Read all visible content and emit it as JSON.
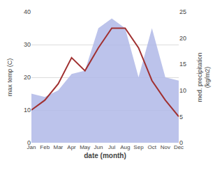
{
  "chart_data": {
    "type": "line",
    "categories": [
      "Jan",
      "Feb",
      "Mar",
      "Apr",
      "May",
      "Jun",
      "Jul",
      "Aug",
      "Sep",
      "Oct",
      "Nov",
      "Dec"
    ],
    "series": [
      {
        "type": "area",
        "color": "#b0b8e8",
        "values": [
          15,
          14,
          16,
          21,
          22,
          35,
          38,
          35,
          20,
          35,
          20,
          19
        ]
      },
      {
        "type": "line",
        "color": "#a03030",
        "values": [
          10,
          13,
          18,
          26,
          22,
          29,
          35,
          35,
          29,
          19,
          13,
          8
        ]
      }
    ],
    "xlabel": "date (month)",
    "ylabel": "max temp (C)",
    "y2label": "med. precipitation\n(kg/m2)",
    "ylim": [
      0,
      40
    ],
    "yticks": [
      0,
      10,
      20,
      30,
      40
    ],
    "y2lim": [
      0,
      25
    ],
    "y2ticks": [
      0,
      5,
      10,
      15,
      20,
      25
    ],
    "grid": true
  }
}
